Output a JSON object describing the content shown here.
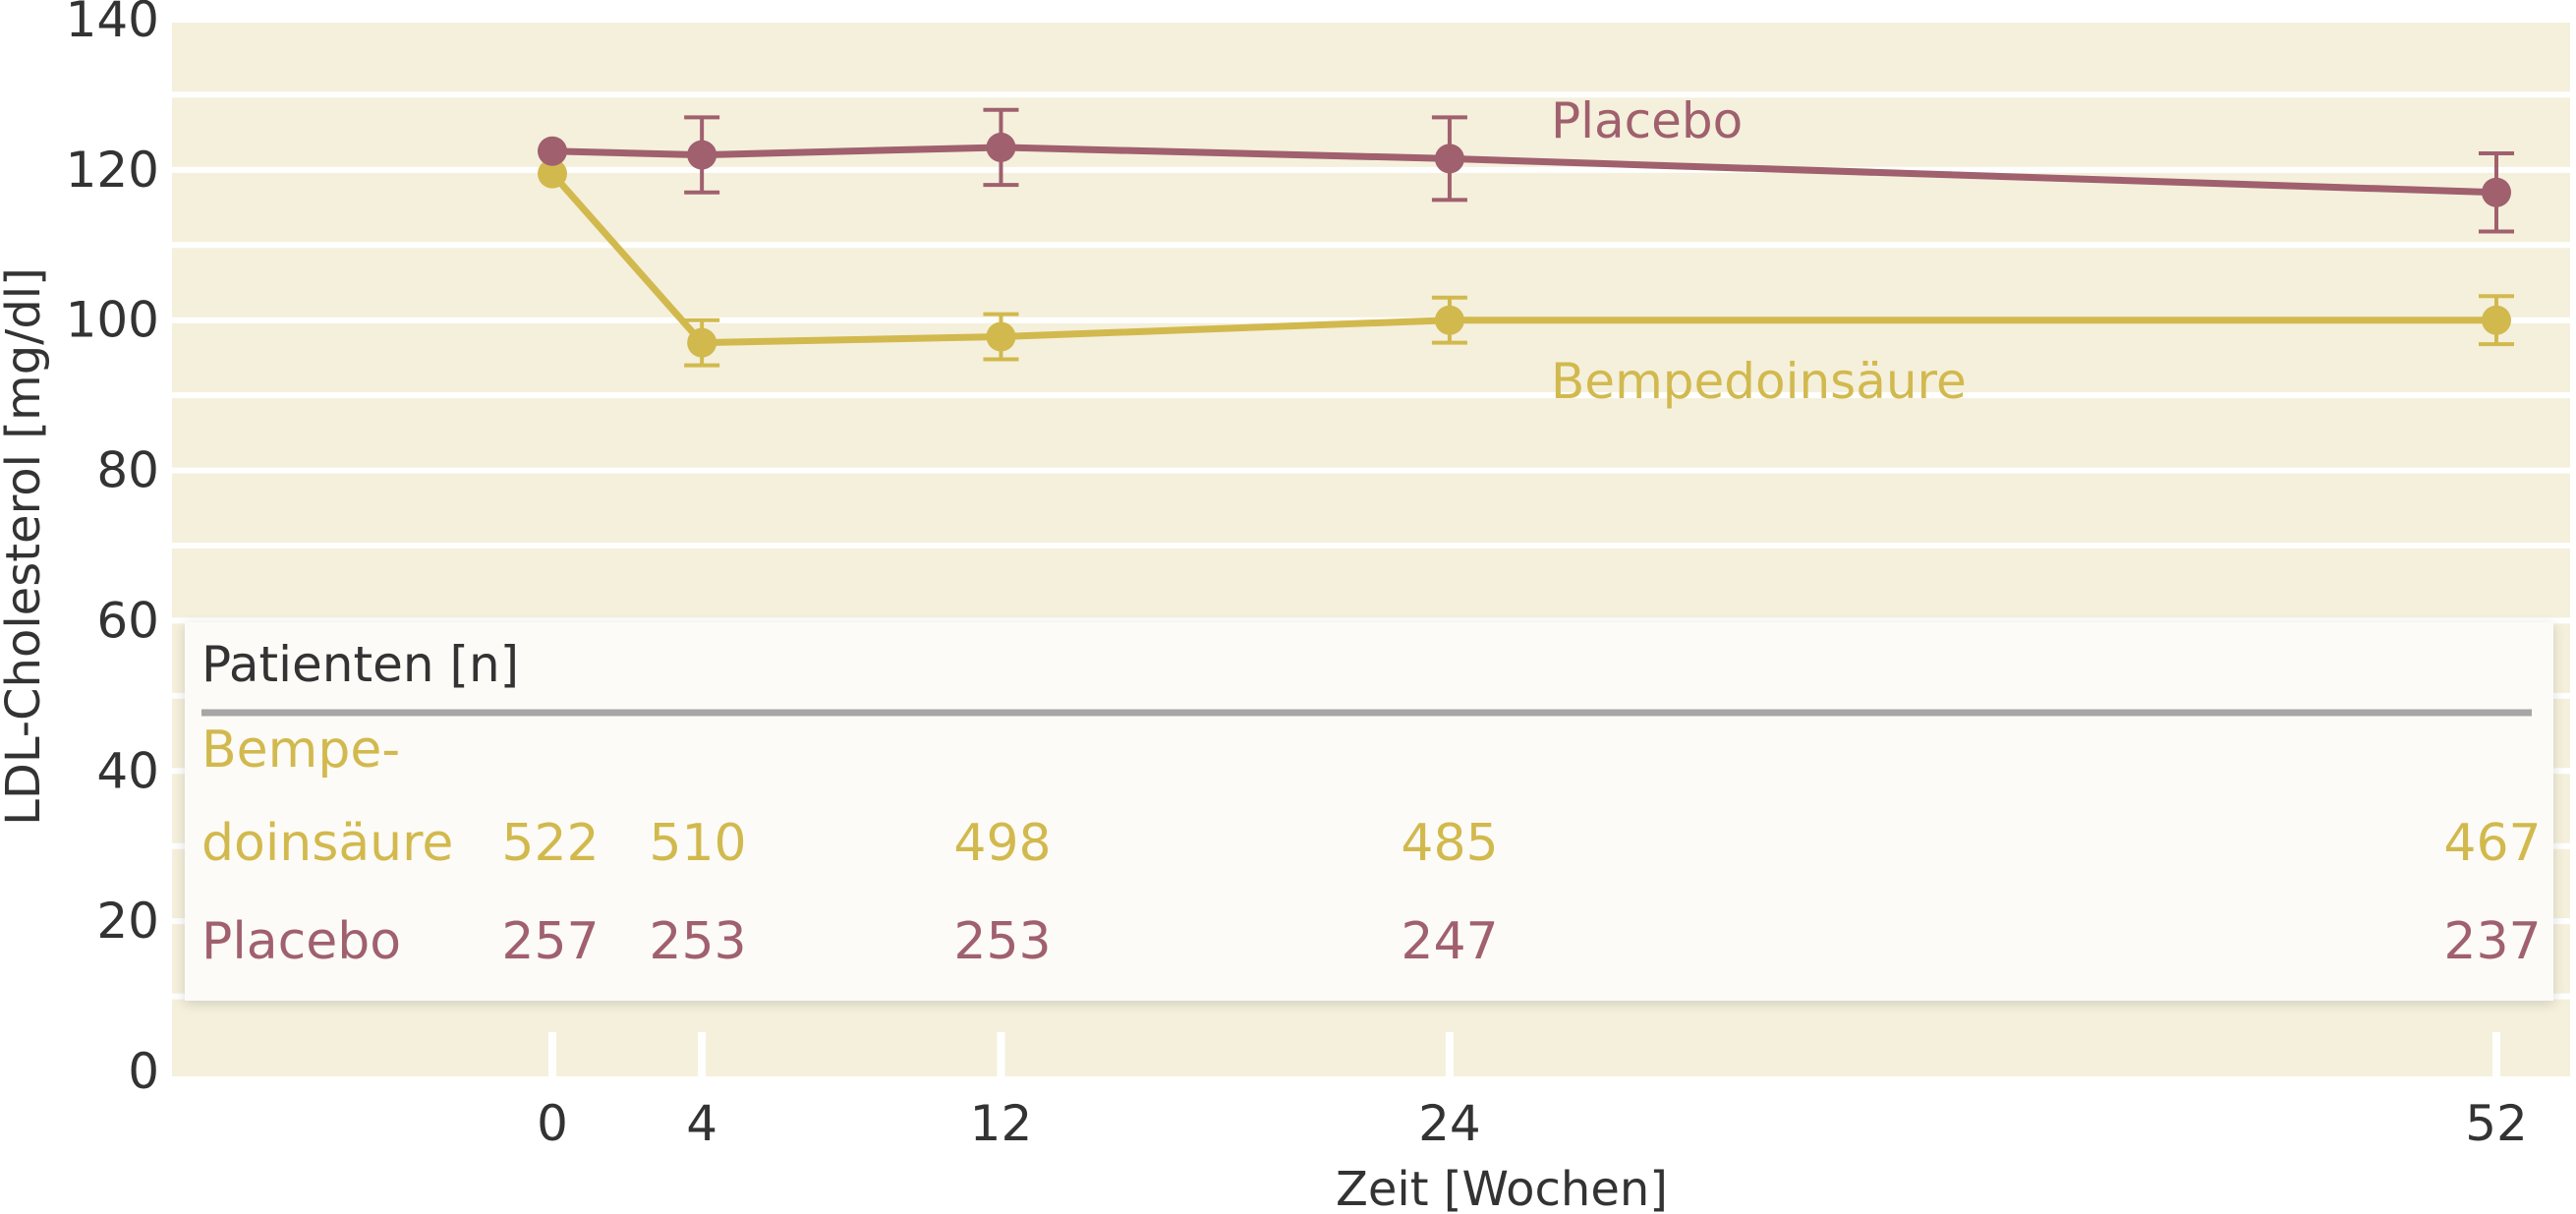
{
  "chart_data": {
    "type": "line",
    "xlabel": "Zeit [Wochen]",
    "ylabel": "LDL-Cholesterol [mg/dl]",
    "ylim": [
      0,
      140
    ],
    "yticks": [
      0,
      20,
      40,
      60,
      80,
      100,
      120,
      140
    ],
    "x": [
      0,
      4,
      12,
      24,
      52
    ],
    "xtick_labels": [
      "0",
      "4",
      "12",
      "24",
      "52"
    ],
    "grid": true,
    "series": [
      {
        "name": "Placebo",
        "color": "#a0606e",
        "values": [
          122.5,
          122,
          123,
          121.5,
          117
        ],
        "error": [
          null,
          5,
          5,
          5.5,
          5.2
        ]
      },
      {
        "name": "Bempedoinsäure",
        "color": "#d2b94e",
        "values": [
          119.5,
          97,
          97.8,
          100,
          100
        ],
        "error": [
          null,
          3,
          3,
          3,
          3.2
        ]
      }
    ],
    "patient_table": {
      "title": "Patienten [n]",
      "rows": [
        {
          "label_lines": [
            "Bempe-",
            "doinsäure"
          ],
          "color": "#d2b94e",
          "values": [
            "522",
            "510",
            "498",
            "485",
            "467"
          ]
        },
        {
          "label_lines": [
            "Placebo"
          ],
          "color": "#a0606e",
          "values": [
            "257",
            "253",
            "253",
            "247",
            "237"
          ]
        }
      ]
    },
    "colors": {
      "plot_background": "#f4f0dc",
      "grid": "#ffffff",
      "table_background": "#fcfbf7",
      "table_rule": "#a6a6a6",
      "text": "#333333"
    }
  }
}
